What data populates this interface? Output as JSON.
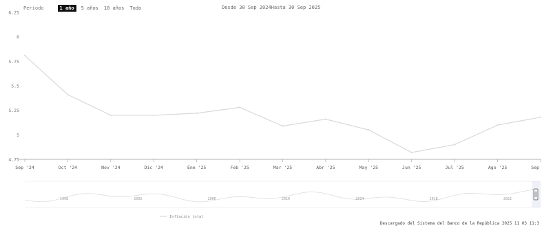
{
  "toolbar": {
    "label": "Periodo",
    "buttons": [
      "1 año",
      "5 años",
      "10 años",
      "Todo"
    ],
    "active_index": 0
  },
  "range_text": "Desde 30 Sep 2024Hasta 30 Sep 2025",
  "credits": "Descargado del Sistema del Banco de la República 2025 11 03 11:3",
  "navigator": {
    "legend": "Inflación total",
    "year_labels": [
      "1998",
      "2002",
      "2006",
      "2010",
      "2014",
      "2018",
      "2022"
    ]
  },
  "colors": {
    "line": "#d9d9d9",
    "axis": "#9a9a9a",
    "active_button_bg": "#111111",
    "text": "#555555"
  },
  "chart_data": {
    "type": "line",
    "title": "",
    "xlabel": "",
    "ylabel": "",
    "ylim": [
      4.75,
      6.25
    ],
    "y_ticks": [
      4.75,
      5,
      5.25,
      5.5,
      5.75,
      6,
      6.25
    ],
    "y_tick_labels": [
      "4.75",
      "5",
      "5.25",
      "5.5",
      "5.75",
      "6",
      "6.25"
    ],
    "x_tick_labels": [
      "Sep '24",
      "Oct '24",
      "Nov '24",
      "Dic '24",
      "Ene '25",
      "Feb '25",
      "Mar '25",
      "Abr '25",
      "May '25",
      "Jun '25",
      "Jul '25",
      "Ago '25",
      "Sep '25"
    ],
    "grid": false,
    "legend": "none",
    "series": [
      {
        "x": [
          "2024-09-30",
          "2024-10-31",
          "2024-11-30",
          "2024-12-31",
          "2025-01-31",
          "2025-02-28",
          "2025-03-31",
          "2025-04-30",
          "2025-05-31",
          "2025-06-30",
          "2025-07-31",
          "2025-08-31",
          "2025-09-30"
        ],
        "values": [
          5.81,
          5.41,
          5.2,
          5.2,
          5.22,
          5.28,
          5.09,
          5.16,
          5.05,
          4.82,
          4.9,
          5.1,
          5.18
        ]
      }
    ]
  }
}
